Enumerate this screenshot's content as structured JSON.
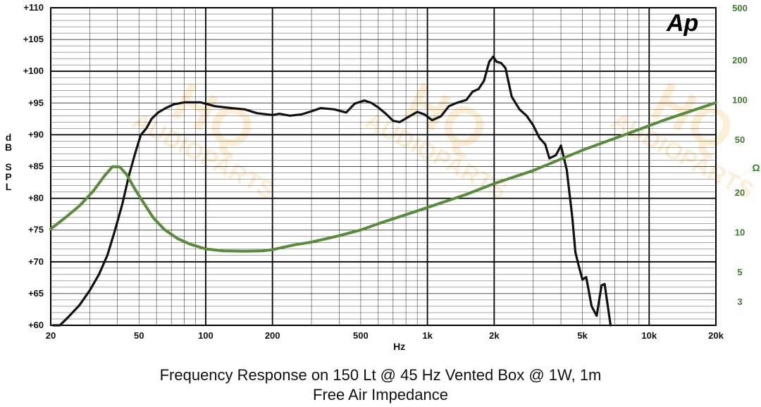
{
  "chart_data": {
    "type": "line",
    "title": "Frequency Response on 150 Lt @ 45 Hz Vented Box @ 1W, 1m",
    "subtitle": "Free Air Impedance",
    "logo": "Ap",
    "watermark": [
      "HQ",
      "AUDIOPARTS"
    ],
    "x_label": "Hz",
    "y_label_left": [
      "d",
      "B",
      "",
      "S",
      "P",
      "L"
    ],
    "y_label_right": "Ω",
    "x_scale": "log",
    "xlim": [
      20,
      20000
    ],
    "ylim_left": [
      60,
      110
    ],
    "ylim_right_log": [
      2,
      500
    ],
    "grid": true,
    "x_ticks": [
      {
        "v": 20,
        "label": "20"
      },
      {
        "v": 50,
        "label": "50"
      },
      {
        "v": 100,
        "label": "100"
      },
      {
        "v": 200,
        "label": "200"
      },
      {
        "v": 500,
        "label": "500"
      },
      {
        "v": 1000,
        "label": "1k"
      },
      {
        "v": 2000,
        "label": "2k"
      },
      {
        "v": 5000,
        "label": "5k"
      },
      {
        "v": 10000,
        "label": "10k"
      },
      {
        "v": 20000,
        "label": "20k"
      }
    ],
    "y_ticks_left": [
      {
        "v": 110,
        "label": "+110"
      },
      {
        "v": 105,
        "label": "+105"
      },
      {
        "v": 100,
        "label": "+100"
      },
      {
        "v": 95,
        "label": "+95"
      },
      {
        "v": 90,
        "label": "+90"
      },
      {
        "v": 85,
        "label": "+85"
      },
      {
        "v": 80,
        "label": "+80"
      },
      {
        "v": 75,
        "label": "+75"
      },
      {
        "v": 70,
        "label": "+70"
      },
      {
        "v": 65,
        "label": "+65"
      },
      {
        "v": 60,
        "label": "+60"
      }
    ],
    "y_ticks_right": [
      {
        "v": 500,
        "label": "500"
      },
      {
        "v": 200,
        "label": "200"
      },
      {
        "v": 100,
        "label": "100"
      },
      {
        "v": 50,
        "label": "50"
      },
      {
        "v": 20,
        "label": "20"
      },
      {
        "v": 10,
        "label": "10"
      },
      {
        "v": 5,
        "label": "5"
      },
      {
        "v": 3,
        "label": "3"
      }
    ],
    "colors": {
      "spl": "#111111",
      "impedance": "#5a8a3c",
      "grid": "#000000",
      "right_axis": "#3f7a33"
    },
    "series": [
      {
        "axis": "left",
        "values": [
          [
            20.5,
            60
          ],
          [
            22,
            60
          ],
          [
            24,
            61.3
          ],
          [
            27,
            63.2
          ],
          [
            30,
            65.5
          ],
          [
            33,
            68
          ],
          [
            36,
            71
          ],
          [
            39,
            75
          ],
          [
            42,
            79
          ],
          [
            45,
            83.5
          ],
          [
            48,
            87
          ],
          [
            51,
            90
          ],
          [
            54,
            91
          ],
          [
            57,
            92.5
          ],
          [
            61,
            93.5
          ],
          [
            66,
            94.2
          ],
          [
            72,
            94.8
          ],
          [
            80,
            95.1
          ],
          [
            95,
            95.1
          ],
          [
            110,
            94.5
          ],
          [
            130,
            94.2
          ],
          [
            150,
            94
          ],
          [
            170,
            93.4
          ],
          [
            200,
            93.1
          ],
          [
            215,
            93.3
          ],
          [
            240,
            93
          ],
          [
            270,
            93.2
          ],
          [
            300,
            93.7
          ],
          [
            330,
            94.2
          ],
          [
            380,
            94
          ],
          [
            430,
            93.5
          ],
          [
            470,
            94.9
          ],
          [
            520,
            95.4
          ],
          [
            560,
            95
          ],
          [
            600,
            94.3
          ],
          [
            650,
            93.3
          ],
          [
            700,
            92.2
          ],
          [
            750,
            92
          ],
          [
            820,
            92.8
          ],
          [
            900,
            93.6
          ],
          [
            970,
            93.2
          ],
          [
            1050,
            92.3
          ],
          [
            1150,
            92.9
          ],
          [
            1250,
            94.5
          ],
          [
            1350,
            95
          ],
          [
            1500,
            95.5
          ],
          [
            1600,
            96.8
          ],
          [
            1700,
            97.2
          ],
          [
            1800,
            98.5
          ],
          [
            1900,
            101.5
          ],
          [
            1980,
            102.3
          ],
          [
            2050,
            101.5
          ],
          [
            2150,
            101.3
          ],
          [
            2250,
            100.5
          ],
          [
            2400,
            96
          ],
          [
            2600,
            94
          ],
          [
            2800,
            93
          ],
          [
            3000,
            91.5
          ],
          [
            3200,
            89.5
          ],
          [
            3400,
            88.5
          ],
          [
            3550,
            86.3
          ],
          [
            3800,
            86.8
          ],
          [
            4000,
            88.3
          ],
          [
            4250,
            84.5
          ],
          [
            4500,
            77
          ],
          [
            4650,
            71.5
          ],
          [
            4800,
            69.5
          ],
          [
            5000,
            67.2
          ],
          [
            5200,
            67.6
          ],
          [
            5500,
            63
          ],
          [
            5800,
            61.5
          ],
          [
            6100,
            66.3
          ],
          [
            6300,
            66.5
          ],
          [
            6700,
            60
          ]
        ]
      },
      {
        "axis": "right",
        "values": [
          [
            20,
            10.7
          ],
          [
            23,
            12.8
          ],
          [
            27,
            16
          ],
          [
            31,
            20.5
          ],
          [
            35,
            27
          ],
          [
            38,
            31.6
          ],
          [
            41,
            31.4
          ],
          [
            44,
            27.5
          ],
          [
            48,
            21.3
          ],
          [
            52,
            17.2
          ],
          [
            58,
            13
          ],
          [
            65,
            10.6
          ],
          [
            75,
            9
          ],
          [
            85,
            8.2
          ],
          [
            100,
            7.55
          ],
          [
            120,
            7.3
          ],
          [
            150,
            7.25
          ],
          [
            180,
            7.3
          ],
          [
            200,
            7.45
          ],
          [
            250,
            8.1
          ],
          [
            300,
            8.5
          ],
          [
            400,
            9.5
          ],
          [
            500,
            10.5
          ],
          [
            600,
            11.7
          ],
          [
            800,
            13.7
          ],
          [
            1000,
            15.5
          ],
          [
            1500,
            19.5
          ],
          [
            2000,
            23.5
          ],
          [
            3000,
            29.5
          ],
          [
            5000,
            42
          ],
          [
            8000,
            56
          ],
          [
            12000,
            72
          ],
          [
            20000,
            96
          ]
        ]
      }
    ]
  },
  "captions": {
    "line1": "Frequency Response on 150 Lt @ 45 Hz Vented Box @ 1W, 1m",
    "line2": "Free Air Impedance"
  }
}
